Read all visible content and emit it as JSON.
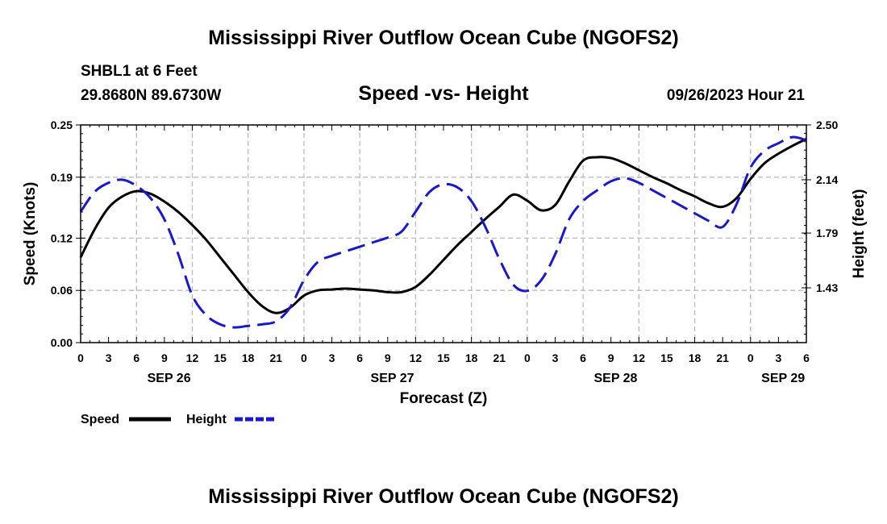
{
  "page": {
    "title": "Mississippi River Outflow Ocean Cube (NGOFS2)",
    "bottom_title": "Mississippi River Outflow Ocean Cube (NGOFS2)",
    "station": "SHBL1 at 6 Feet",
    "location": "29.8680N  89.6730W",
    "subtitle": "Speed -vs- Height",
    "datetime": "09/26/2023 Hour 21"
  },
  "legend": {
    "speed_label": "Speed",
    "height_label": "Height"
  },
  "colors": {
    "speed": "#000000",
    "height": "#1818cc"
  },
  "chart_data": {
    "type": "line",
    "xlabel": "Forecast (Z)",
    "ylabel_left": "Speed (Knots)",
    "ylabel_right": "Height (feet)",
    "x_unit": "hours",
    "xlim": [
      0,
      78
    ],
    "ylim_left": [
      0.0,
      0.25
    ],
    "ylim_right": [
      1.07,
      2.5
    ],
    "x_ticks": [
      0,
      3,
      6,
      9,
      12,
      15,
      18,
      21,
      24,
      27,
      30,
      33,
      36,
      39,
      42,
      45,
      48,
      51,
      54,
      57,
      60,
      63,
      66,
      69,
      72,
      75,
      78
    ],
    "x_tick_labels": [
      "0",
      "3",
      "6",
      "9",
      "12",
      "15",
      "18",
      "21",
      "0",
      "3",
      "6",
      "9",
      "12",
      "15",
      "18",
      "21",
      "0",
      "3",
      "6",
      "9",
      "12",
      "15",
      "18",
      "21",
      "0",
      "3",
      "6"
    ],
    "date_labels": [
      {
        "x": 9.5,
        "label": "SEP 26"
      },
      {
        "x": 33.5,
        "label": "SEP 27"
      },
      {
        "x": 57.5,
        "label": "SEP 28"
      },
      {
        "x": 75.5,
        "label": "SEP 29"
      }
    ],
    "y_ticks_left": [
      0.0,
      0.06,
      0.12,
      0.19,
      0.25
    ],
    "y_tick_labels_left": [
      "0.00",
      "0.06",
      "0.12",
      "0.19",
      "0.25"
    ],
    "y_ticks_right": [
      1.43,
      1.79,
      2.14,
      2.5
    ],
    "y_tick_labels_right": [
      "1.43",
      "1.79",
      "2.14",
      "2.50"
    ],
    "series": [
      {
        "name": "Speed",
        "axis": "left",
        "style": "solid",
        "x": [
          0,
          1.5,
          3,
          4.5,
          6,
          7.5,
          9,
          10.5,
          12,
          13.5,
          15,
          16.5,
          18,
          19.5,
          21,
          22.5,
          24,
          25.5,
          27,
          28.5,
          30,
          31.5,
          33,
          34.5,
          36,
          37.5,
          39,
          40.5,
          42,
          43.5,
          45,
          46.5,
          48,
          49.5,
          51,
          52.5,
          54,
          55.5,
          57,
          58.5,
          60,
          61.5,
          63,
          64.5,
          66,
          67.5,
          69,
          70.5,
          72,
          73.5,
          75,
          76.5,
          78
        ],
        "values": [
          0.098,
          0.13,
          0.155,
          0.168,
          0.174,
          0.171,
          0.162,
          0.15,
          0.135,
          0.118,
          0.098,
          0.078,
          0.058,
          0.042,
          0.034,
          0.04,
          0.054,
          0.06,
          0.061,
          0.062,
          0.061,
          0.06,
          0.058,
          0.058,
          0.064,
          0.078,
          0.095,
          0.112,
          0.127,
          0.142,
          0.156,
          0.17,
          0.163,
          0.152,
          0.158,
          0.185,
          0.209,
          0.213,
          0.212,
          0.206,
          0.198,
          0.19,
          0.183,
          0.175,
          0.168,
          0.16,
          0.156,
          0.166,
          0.188,
          0.206,
          0.217,
          0.226,
          0.234
        ]
      },
      {
        "name": "Height",
        "axis": "right",
        "style": "dashed",
        "x": [
          0,
          1.5,
          3,
          4.5,
          6,
          7.5,
          9,
          10.5,
          12,
          13.5,
          15,
          16.5,
          18,
          19.5,
          21,
          22.5,
          24,
          25.5,
          27,
          28.5,
          30,
          31.5,
          33,
          34.5,
          36,
          37.5,
          39,
          40.5,
          42,
          43.5,
          45,
          46.5,
          48,
          49.5,
          51,
          52.5,
          54,
          55.5,
          57,
          58.5,
          60,
          61.5,
          63,
          64.5,
          66,
          67.5,
          69,
          70.5,
          72,
          73.5,
          75,
          76.5,
          78
        ],
        "values": [
          1.93,
          2.06,
          2.12,
          2.14,
          2.1,
          2.02,
          1.88,
          1.65,
          1.38,
          1.25,
          1.19,
          1.17,
          1.18,
          1.19,
          1.21,
          1.3,
          1.48,
          1.6,
          1.64,
          1.67,
          1.7,
          1.73,
          1.76,
          1.8,
          1.93,
          2.06,
          2.11,
          2.09,
          2.0,
          1.83,
          1.62,
          1.45,
          1.41,
          1.48,
          1.65,
          1.88,
          2.0,
          2.07,
          2.13,
          2.15,
          2.12,
          2.07,
          2.02,
          1.97,
          1.92,
          1.87,
          1.83,
          1.98,
          2.22,
          2.33,
          2.38,
          2.42,
          2.4
        ]
      }
    ]
  }
}
